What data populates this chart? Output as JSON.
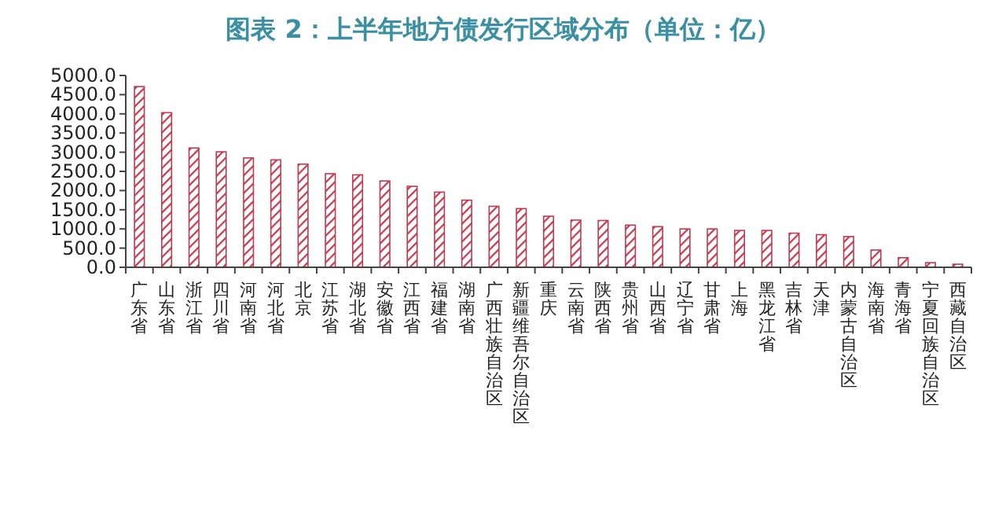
{
  "chart_data": {
    "type": "bar",
    "title": "图表 2：上半年地方债发行区域分布（单位：亿）",
    "categories": [
      "广东省",
      "山东省",
      "浙江省",
      "四川省",
      "河南省",
      "河北省",
      "北京",
      "江苏省",
      "湖北省",
      "安徽省",
      "江西省",
      "福建省",
      "湖南省",
      "广西壮族自治区",
      "新疆维吾尔自治区",
      "重庆",
      "云南省",
      "陕西省",
      "贵州省",
      "山西省",
      "辽宁省",
      "甘肃省",
      "上海",
      "黑龙江省",
      "吉林省",
      "天津",
      "内蒙古自治区",
      "海南省",
      "青海省",
      "宁夏回族自治区",
      "西藏自治区"
    ],
    "values": [
      4710,
      4030,
      3110,
      3010,
      2850,
      2800,
      2690,
      2440,
      2410,
      2250,
      2110,
      1960,
      1750,
      1590,
      1530,
      1330,
      1230,
      1220,
      1100,
      1060,
      1000,
      1000,
      960,
      960,
      890,
      850,
      800,
      450,
      250,
      120,
      80
    ],
    "color": "#c0394f",
    "ylim": [
      0,
      5000
    ],
    "yticks": [
      {
        "value": 0,
        "label": "0.0"
      },
      {
        "value": 500,
        "label": "500.0"
      },
      {
        "value": 1000,
        "label": "1000.0"
      },
      {
        "value": 1500,
        "label": "1500.0"
      },
      {
        "value": 2000,
        "label": "2000.0"
      },
      {
        "value": 2500,
        "label": "2500.0"
      },
      {
        "value": 3000,
        "label": "3000.0"
      },
      {
        "value": 3500,
        "label": "3500.0"
      },
      {
        "value": 4000,
        "label": "4000.0"
      },
      {
        "value": 4500,
        "label": "4500.0"
      },
      {
        "value": 5000,
        "label": "5000.0"
      }
    ]
  }
}
